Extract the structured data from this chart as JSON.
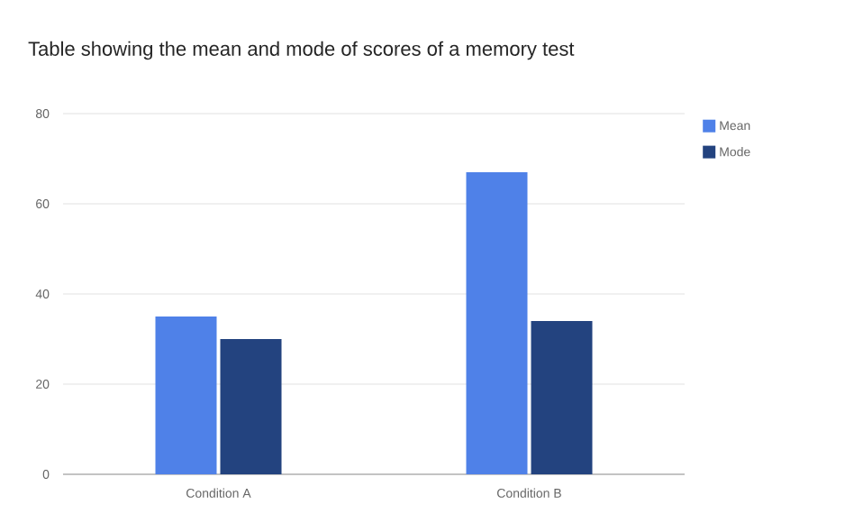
{
  "chart_data": {
    "type": "bar",
    "title": "Table showing the mean and mode of scores of a memory test",
    "categories": [
      "Condition A",
      "Condition B"
    ],
    "series": [
      {
        "name": "Mean",
        "color": "#4f81e8",
        "values": [
          35,
          67
        ]
      },
      {
        "name": "Mode",
        "color": "#23437f",
        "values": [
          30,
          34
        ]
      }
    ],
    "ylim": [
      0,
      80
    ],
    "yticks": [
      0,
      20,
      40,
      60,
      80
    ],
    "grid": "y",
    "legend": "right"
  }
}
